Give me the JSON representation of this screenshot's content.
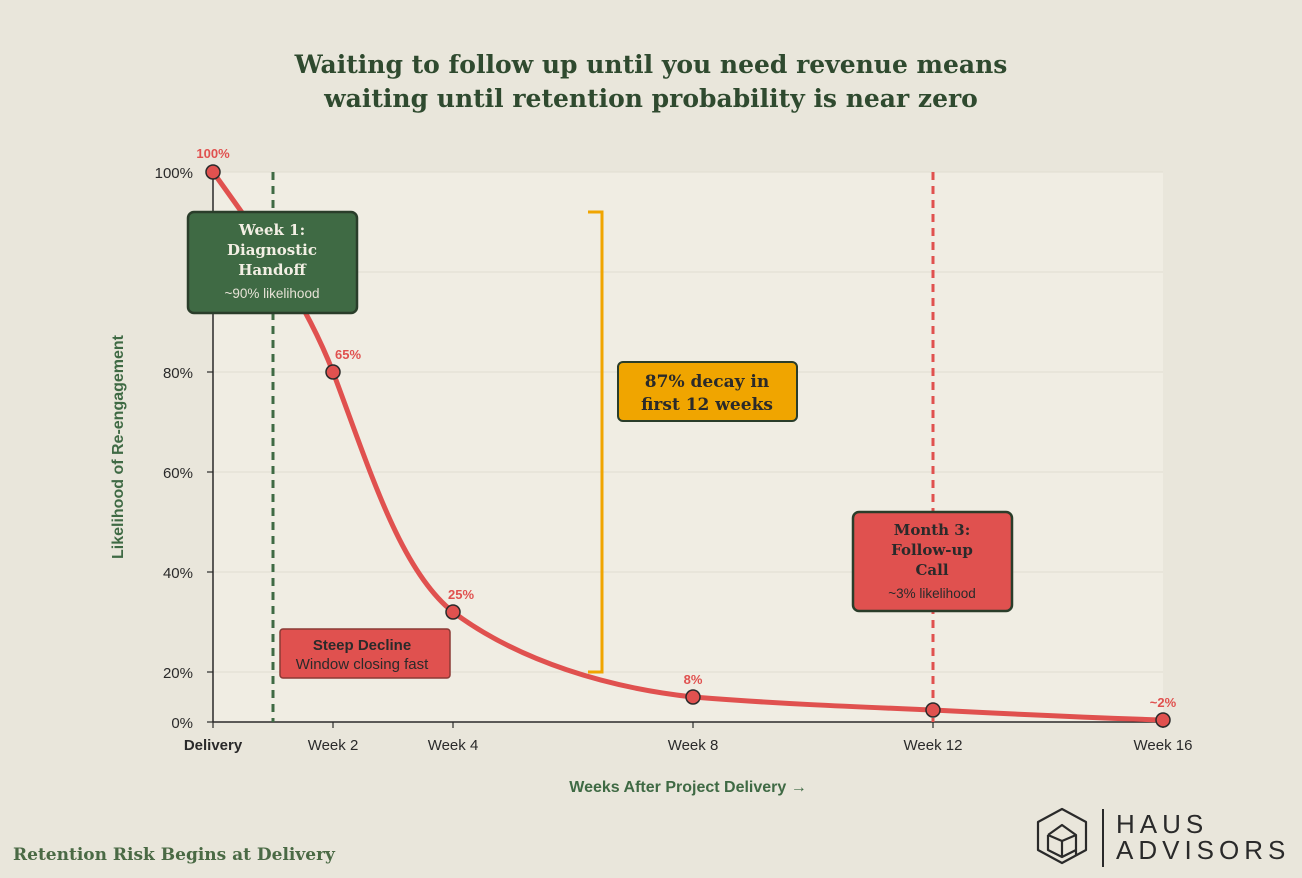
{
  "title": {
    "line1": "Waiting to follow up until you need revenue means",
    "line2": "waiting until retention probability is near zero"
  },
  "footer_note": "Retention Risk Begins at Delivery",
  "logo": {
    "line1": "HAUS",
    "line2": "ADVISORS",
    "icon": "house-hexagon-icon"
  },
  "colors": {
    "background": "#e9e6db",
    "plot_bg": "#f0ede3",
    "curve": "#e0514f",
    "green": "#3f6a44",
    "dark_green": "#2a3d2a",
    "amber": "#f0a500",
    "axis_text": "#2a2a2a"
  },
  "chart_data": {
    "type": "line",
    "xlabel": "Weeks After Project Delivery →",
    "ylabel": "Likelihood of Re-engagement",
    "x_ticks": [
      {
        "x": 0,
        "label": "Delivery"
      },
      {
        "x": 2,
        "label": "Week 2"
      },
      {
        "x": 4,
        "label": "Week 4"
      },
      {
        "x": 8,
        "label": "Week 8"
      },
      {
        "x": 12,
        "label": "Week 12"
      },
      {
        "x": 16,
        "label": "Week 16"
      }
    ],
    "y_ticks": [
      "0%",
      "20%",
      "40%",
      "60%",
      "80%",
      "100%"
    ],
    "series": [
      {
        "points": [
          {
            "x": 0,
            "label": "100%"
          },
          {
            "x": 2,
            "label": "65%"
          },
          {
            "x": 4,
            "label": "25%"
          },
          {
            "x": 8,
            "label": "8%"
          },
          {
            "x": 12,
            "label": ""
          },
          {
            "x": 16,
            "label": "~2%"
          }
        ]
      }
    ],
    "vlines": [
      {
        "x": 1,
        "style": "dashed",
        "color": "green"
      },
      {
        "x": 12,
        "style": "dashed",
        "color": "red"
      }
    ],
    "annotations": {
      "week1": {
        "title": "Week 1: Diagnostic Handoff",
        "title_lines": [
          "Week 1:",
          "Diagnostic",
          "Handoff"
        ],
        "subtitle": "~90% likelihood"
      },
      "steep": {
        "title": "Steep Decline",
        "subtitle": "Window closing fast"
      },
      "decay": {
        "line1": "87% decay in",
        "line2": "first 12 weeks"
      },
      "month3": {
        "title_lines": [
          "Month 3:",
          "Follow-up",
          "Call"
        ],
        "subtitle": "~3% likelihood"
      }
    }
  }
}
